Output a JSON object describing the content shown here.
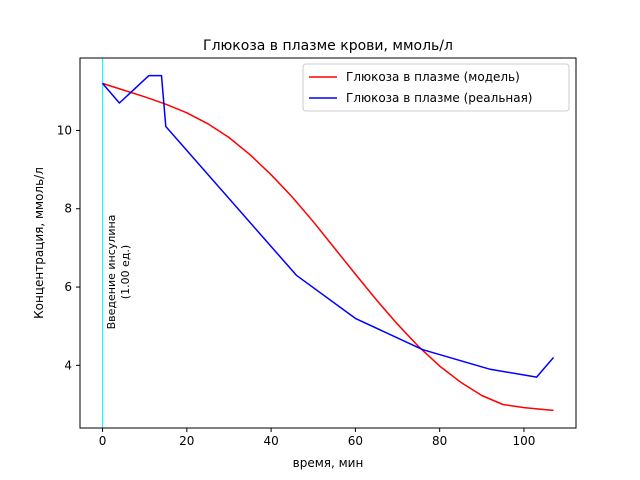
{
  "chart_data": {
    "type": "line",
    "title": "Глюкоза в плазме крови, ммоль/л",
    "xlabel": "время, мин",
    "ylabel": "Концентрация, ммоль/л",
    "xlim": [
      -5.35,
      112.35
    ],
    "ylim": [
      2.4,
      11.85
    ],
    "xticks": [
      0,
      20,
      40,
      60,
      80,
      100
    ],
    "yticks": [
      4,
      6,
      8,
      10
    ],
    "grid": false,
    "legend_position": "top-right",
    "series": [
      {
        "name": "Глюкоза в плазме (модель)",
        "color": "#ff0000",
        "x": [
          0,
          5,
          10,
          15,
          20,
          25,
          30,
          35,
          40,
          45,
          50,
          55,
          60,
          65,
          70,
          75,
          80,
          85,
          90,
          95,
          100,
          105,
          107
        ],
        "y": [
          11.2,
          11.03,
          10.86,
          10.67,
          10.45,
          10.17,
          9.82,
          9.38,
          8.87,
          8.3,
          7.67,
          7.0,
          6.33,
          5.67,
          5.05,
          4.48,
          3.98,
          3.57,
          3.23,
          3.0,
          2.92,
          2.87,
          2.85
        ]
      },
      {
        "name": "Глюкоза в плазме (реальная)",
        "color": "#0000ff",
        "x": [
          0,
          4,
          11,
          14,
          15,
          46,
          60,
          76,
          92,
          103,
          107
        ],
        "y": [
          11.2,
          10.7,
          11.4,
          11.4,
          10.1,
          6.3,
          5.2,
          4.4,
          3.9,
          3.7,
          4.2
        ]
      }
    ],
    "vertical_line": {
      "x": 0,
      "color": "#00ffff"
    },
    "annotation": {
      "line1": "Введение инсулина",
      "line2": "(1.00 ед.)"
    }
  }
}
